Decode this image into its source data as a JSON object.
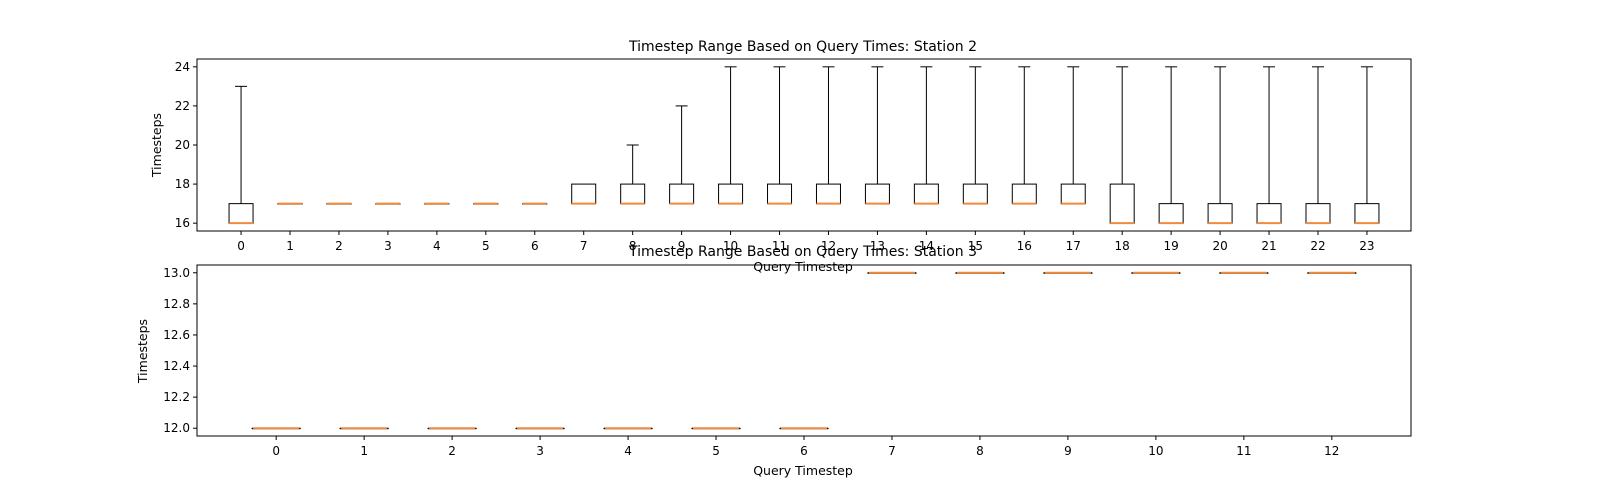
{
  "chart_data": [
    {
      "type": "box",
      "title": "Timestep Range Based on Query Times: Station 2",
      "xlabel": "Query Timestep",
      "ylabel": "Timesteps",
      "ylim": [
        15.6,
        24.4
      ],
      "yticks": [
        "16",
        "18",
        "20",
        "22",
        "24"
      ],
      "categories": [
        "0",
        "1",
        "2",
        "3",
        "4",
        "5",
        "6",
        "7",
        "8",
        "9",
        "10",
        "11",
        "12",
        "13",
        "14",
        "15",
        "16",
        "17",
        "18",
        "19",
        "20",
        "21",
        "22",
        "23"
      ],
      "boxes": [
        {
          "min": 16,
          "q1": 16,
          "median": 16,
          "q3": 17,
          "max": 23
        },
        {
          "min": 17,
          "q1": 17,
          "median": 17,
          "q3": 17,
          "max": 17
        },
        {
          "min": 17,
          "q1": 17,
          "median": 17,
          "q3": 17,
          "max": 17
        },
        {
          "min": 17,
          "q1": 17,
          "median": 17,
          "q3": 17,
          "max": 17
        },
        {
          "min": 17,
          "q1": 17,
          "median": 17,
          "q3": 17,
          "max": 17
        },
        {
          "min": 17,
          "q1": 17,
          "median": 17,
          "q3": 17,
          "max": 17
        },
        {
          "min": 17,
          "q1": 17,
          "median": 17,
          "q3": 17,
          "max": 17
        },
        {
          "min": 17,
          "q1": 17,
          "median": 17,
          "q3": 18,
          "max": 18
        },
        {
          "min": 17,
          "q1": 17,
          "median": 17,
          "q3": 18,
          "max": 20
        },
        {
          "min": 17,
          "q1": 17,
          "median": 17,
          "q3": 18,
          "max": 22
        },
        {
          "min": 17,
          "q1": 17,
          "median": 17,
          "q3": 18,
          "max": 24
        },
        {
          "min": 17,
          "q1": 17,
          "median": 17,
          "q3": 18,
          "max": 24
        },
        {
          "min": 17,
          "q1": 17,
          "median": 17,
          "q3": 18,
          "max": 24
        },
        {
          "min": 17,
          "q1": 17,
          "median": 17,
          "q3": 18,
          "max": 24
        },
        {
          "min": 17,
          "q1": 17,
          "median": 17,
          "q3": 18,
          "max": 24
        },
        {
          "min": 17,
          "q1": 17,
          "median": 17,
          "q3": 18,
          "max": 24
        },
        {
          "min": 17,
          "q1": 17,
          "median": 17,
          "q3": 18,
          "max": 24
        },
        {
          "min": 17,
          "q1": 17,
          "median": 17,
          "q3": 18,
          "max": 24
        },
        {
          "min": 16,
          "q1": 16,
          "median": 16,
          "q3": 18,
          "max": 24
        },
        {
          "min": 16,
          "q1": 16,
          "median": 16,
          "q3": 17,
          "max": 24
        },
        {
          "min": 16,
          "q1": 16,
          "median": 16,
          "q3": 17,
          "max": 24
        },
        {
          "min": 16,
          "q1": 16,
          "median": 16,
          "q3": 17,
          "max": 24
        },
        {
          "min": 16,
          "q1": 16,
          "median": 16,
          "q3": 17,
          "max": 24
        },
        {
          "min": 16,
          "q1": 16,
          "median": 16,
          "q3": 17,
          "max": 24
        }
      ],
      "grid": false,
      "box_color": "#000000",
      "median_color": "#f08a3c"
    },
    {
      "type": "box",
      "title": "Timestep Range Based on Query Times: Station 3",
      "xlabel": "Query Timestep",
      "ylabel": "Timesteps",
      "ylim": [
        11.95,
        13.05
      ],
      "yticks": [
        "12.0",
        "12.2",
        "12.4",
        "12.6",
        "12.8",
        "13.0"
      ],
      "categories": [
        "0",
        "1",
        "2",
        "3",
        "4",
        "5",
        "6",
        "7",
        "8",
        "9",
        "10",
        "11",
        "12"
      ],
      "boxes": [
        {
          "min": 12,
          "q1": 12,
          "median": 12,
          "q3": 12,
          "max": 12
        },
        {
          "min": 12,
          "q1": 12,
          "median": 12,
          "q3": 12,
          "max": 12
        },
        {
          "min": 12,
          "q1": 12,
          "median": 12,
          "q3": 12,
          "max": 12
        },
        {
          "min": 12,
          "q1": 12,
          "median": 12,
          "q3": 12,
          "max": 12
        },
        {
          "min": 12,
          "q1": 12,
          "median": 12,
          "q3": 12,
          "max": 12
        },
        {
          "min": 12,
          "q1": 12,
          "median": 12,
          "q3": 12,
          "max": 12
        },
        {
          "min": 12,
          "q1": 12,
          "median": 12,
          "q3": 12,
          "max": 12
        },
        {
          "min": 13,
          "q1": 13,
          "median": 13,
          "q3": 13,
          "max": 13
        },
        {
          "min": 13,
          "q1": 13,
          "median": 13,
          "q3": 13,
          "max": 13
        },
        {
          "min": 13,
          "q1": 13,
          "median": 13,
          "q3": 13,
          "max": 13
        },
        {
          "min": 13,
          "q1": 13,
          "median": 13,
          "q3": 13,
          "max": 13
        },
        {
          "min": 13,
          "q1": 13,
          "median": 13,
          "q3": 13,
          "max": 13
        },
        {
          "min": 13,
          "q1": 13,
          "median": 13,
          "q3": 13,
          "max": 13
        }
      ],
      "grid": false,
      "box_color": "#000000",
      "median_color": "#f08a3c"
    }
  ]
}
